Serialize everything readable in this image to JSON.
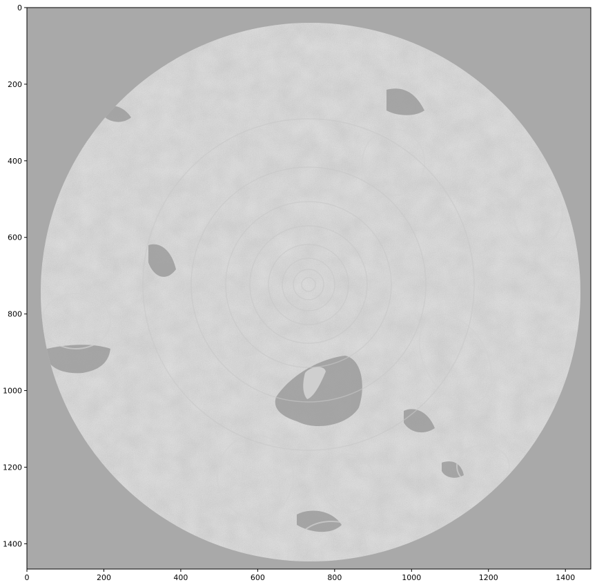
{
  "figure": {
    "background_color": "#a9a9a9",
    "image_description_icon": "ct-scan-cross-section-image",
    "disc_fill_color": "#bdbdbd"
  },
  "axes": {
    "x_ticks": [
      0,
      200,
      400,
      600,
      800,
      1000,
      1200,
      1400
    ],
    "y_ticks": [
      0,
      200,
      400,
      600,
      800,
      1000,
      1200,
      1400
    ],
    "x_labels": [
      "0",
      "200",
      "400",
      "600",
      "800",
      "1000",
      "1200",
      "1400"
    ],
    "y_labels": [
      "0",
      "200",
      "400",
      "600",
      "800",
      "1000",
      "1200",
      "1400"
    ],
    "xlim": [
      0,
      1466
    ],
    "ylim": [
      1466,
      0
    ]
  }
}
